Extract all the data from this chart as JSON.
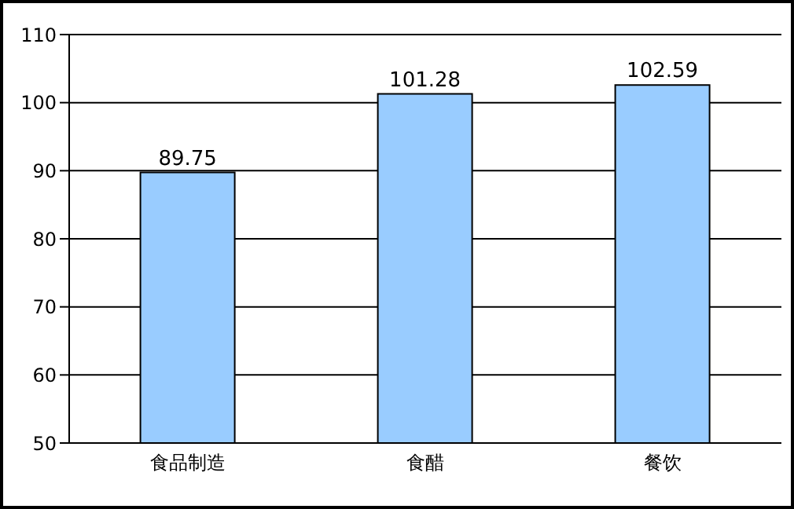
{
  "chart_data": {
    "type": "bar",
    "categories": [
      "食品制造",
      "食醋",
      "餐饮"
    ],
    "values": [
      89.75,
      101.28,
      102.59
    ],
    "color": "#99ccff",
    "ylim": [
      50,
      110
    ],
    "yticks": [
      50,
      60,
      70,
      80,
      90,
      100,
      110
    ],
    "grid": "y",
    "data_labels": true
  }
}
